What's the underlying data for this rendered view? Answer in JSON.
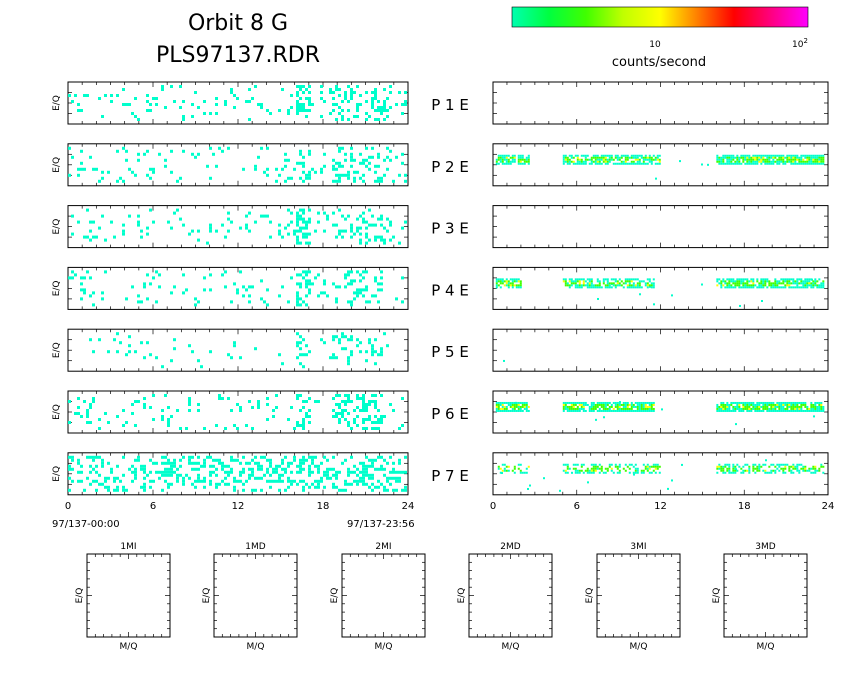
{
  "header": {
    "title_line1": "Orbit  8  G",
    "title_line2": "PLS97137.RDR"
  },
  "colorbar": {
    "label": "counts/second",
    "tick_10": "10",
    "tick_100_base": "10",
    "tick_100_exp": "2",
    "colors": [
      "#00ffb0",
      "#00ff40",
      "#40ff00",
      "#c0ff00",
      "#ffff00",
      "#ff8000",
      "#ff0000",
      "#ff0080",
      "#ff00ff"
    ]
  },
  "chart_data": {
    "type": "heatmap",
    "ylabel": "E/Q",
    "colors": {
      "low": "#00ffcc",
      "mid": "#40ff00",
      "high": "#ffff00",
      "frame": "#000000"
    },
    "time_panels": {
      "x_ticks": [
        "0",
        "6",
        "12",
        "18",
        "24"
      ],
      "xlim": [
        0,
        24
      ],
      "start_label": "97/137-00:00",
      "end_label": "97/137-23:56",
      "rows": [
        {
          "label": "P  1  E",
          "left": {
            "density": 0.3,
            "bursts": [
              [
                16.0,
                17.0,
                0.8
              ],
              [
                18.5,
                22.5,
                0.55
              ]
            ]
          },
          "right": {
            "density": 0.0,
            "bands": []
          }
        },
        {
          "label": "P  2  E",
          "left": {
            "density": 0.22,
            "bursts": [
              [
                16.0,
                17.0,
                0.7
              ],
              [
                18.5,
                22.5,
                0.45
              ]
            ]
          },
          "right": {
            "density": 0.02,
            "bands": [
              [
                0.2,
                2.6,
                0.8
              ],
              [
                5.0,
                12.0,
                0.75
              ],
              [
                16.0,
                23.6,
                0.85
              ]
            ]
          }
        },
        {
          "label": "P  3  E",
          "left": {
            "density": 0.28,
            "bursts": [
              [
                16.0,
                17.0,
                0.8
              ],
              [
                18.5,
                22.5,
                0.5
              ]
            ]
          },
          "right": {
            "density": 0.0,
            "bands": []
          }
        },
        {
          "label": "P  4  E",
          "left": {
            "density": 0.18,
            "bursts": [
              [
                16.0,
                17.0,
                0.75
              ],
              [
                18.5,
                22.5,
                0.4
              ]
            ]
          },
          "right": {
            "density": 0.1,
            "bands": [
              [
                0.2,
                2.0,
                0.7
              ],
              [
                5.0,
                11.5,
                0.65
              ],
              [
                16.0,
                23.6,
                0.75
              ]
            ]
          }
        },
        {
          "label": "P  5  E",
          "left": {
            "density": 0.1,
            "bursts": [
              [
                16.0,
                17.0,
                0.5
              ],
              [
                18.5,
                22.5,
                0.25
              ]
            ]
          },
          "right": {
            "density": 0.01,
            "bands": []
          }
        },
        {
          "label": "P  6  E",
          "left": {
            "density": 0.2,
            "bursts": [
              [
                16.0,
                17.0,
                0.8
              ],
              [
                18.5,
                22.5,
                0.55
              ]
            ]
          },
          "right": {
            "density": 0.03,
            "bands": [
              [
                0.2,
                2.6,
                0.85
              ],
              [
                5.0,
                11.5,
                0.8
              ],
              [
                16.0,
                23.6,
                0.9
              ]
            ]
          }
        },
        {
          "label": "P  7  E",
          "left": {
            "density": 0.3,
            "bursts": [
              [
                0.0,
                24.0,
                0.5
              ],
              [
                16.0,
                17.0,
                0.9
              ]
            ]
          },
          "right": {
            "density": 0.08,
            "bands": [
              [
                0.2,
                2.6,
                0.4
              ],
              [
                5.0,
                12.0,
                0.45
              ],
              [
                16.0,
                23.6,
                0.5
              ]
            ]
          }
        }
      ]
    },
    "mass_panels": [
      {
        "title": "1MI",
        "xlabel": "M/Q",
        "ylabel": "E/Q"
      },
      {
        "title": "1MD",
        "xlabel": "M/Q",
        "ylabel": "E/Q"
      },
      {
        "title": "2MI",
        "xlabel": "M/Q",
        "ylabel": "E/Q"
      },
      {
        "title": "2MD",
        "xlabel": "M/Q",
        "ylabel": "E/Q"
      },
      {
        "title": "3MI",
        "xlabel": "M/Q",
        "ylabel": "E/Q"
      },
      {
        "title": "3MD",
        "xlabel": "M/Q",
        "ylabel": "E/Q"
      }
    ]
  }
}
